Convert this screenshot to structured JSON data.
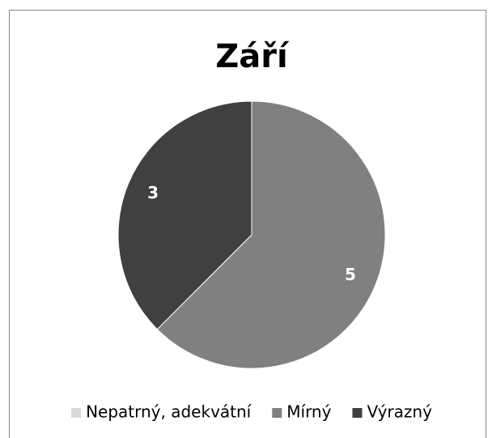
{
  "chart_data": {
    "type": "pie",
    "title": "Září",
    "categories": [
      "Nepatrný, adekvátní",
      "Mírný",
      "Výrazný"
    ],
    "values": [
      0,
      5,
      3
    ],
    "colors": [
      "#d9d9d9",
      "#808080",
      "#404040"
    ],
    "legend": "bottom"
  }
}
